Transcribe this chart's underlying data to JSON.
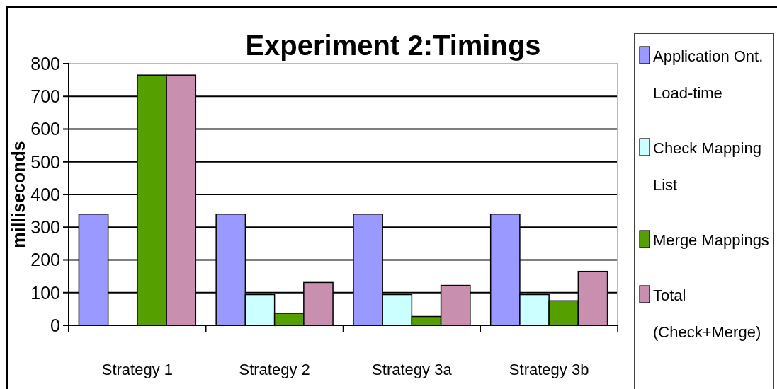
{
  "chart_data": {
    "type": "bar",
    "title": "Experiment 2:Timings",
    "ylabel": "milliseconds",
    "categories": [
      "Strategy 1",
      "Strategy 2",
      "Strategy 3a",
      "Strategy 3b"
    ],
    "series": [
      {
        "name": "Application Ont. Load-time",
        "color": "#9999ff",
        "values": [
          340,
          340,
          340,
          340
        ]
      },
      {
        "name": "Check Mapping List",
        "color": "#ccffff",
        "values": [
          null,
          94,
          94,
          94
        ]
      },
      {
        "name": "Merge Mappings",
        "color": "#55a000",
        "values": [
          765,
          37,
          27,
          75
        ]
      },
      {
        "name": "Total (Check+Merge)",
        "color": "#c98fae",
        "values": [
          765,
          131,
          122,
          165
        ]
      }
    ],
    "ylim": [
      0,
      800
    ],
    "yticks": [
      0,
      100,
      200,
      300,
      400,
      500,
      600,
      700,
      800
    ],
    "grid": "y",
    "legend": "right"
  }
}
